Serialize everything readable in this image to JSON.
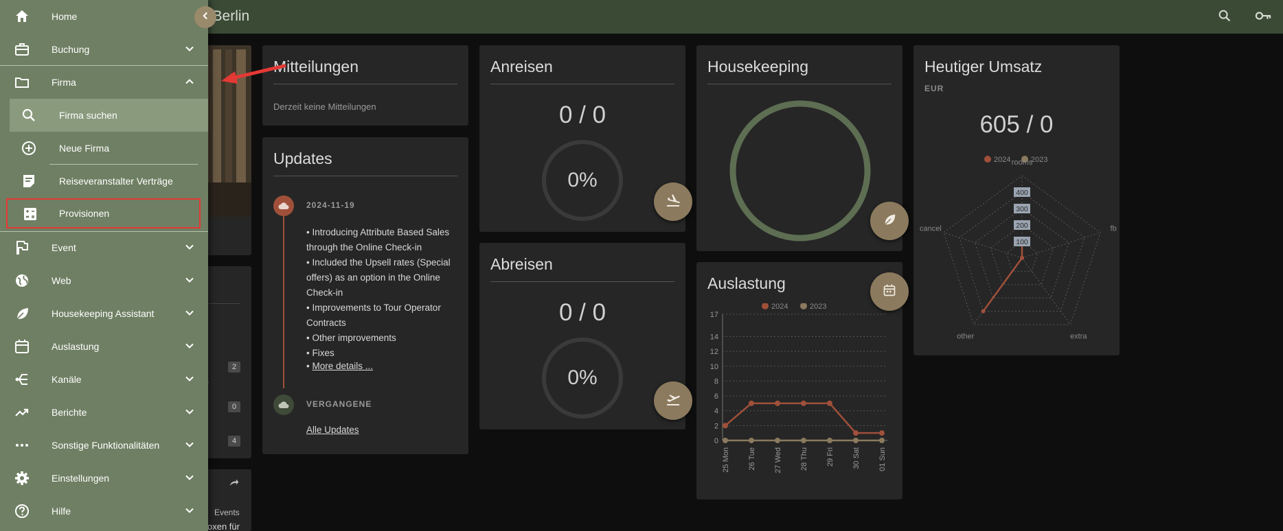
{
  "topbar": {
    "title": "d Berlin"
  },
  "sidebar": {
    "items": [
      {
        "label": "Home"
      },
      {
        "label": "Buchung"
      },
      {
        "label": "Firma"
      },
      {
        "label": "Firma suchen"
      },
      {
        "label": "Neue Firma"
      },
      {
        "label": "Reiseveranstalter Verträge"
      },
      {
        "label": "Provisionen"
      },
      {
        "label": "Event"
      },
      {
        "label": "Web"
      },
      {
        "label": "Housekeeping Assistant"
      },
      {
        "label": "Auslastung"
      },
      {
        "label": "Kanäle"
      },
      {
        "label": "Berichte"
      },
      {
        "label": "Sonstige Funktionalitäten"
      },
      {
        "label": "Einstellungen"
      },
      {
        "label": "Hilfe"
      }
    ]
  },
  "left_partial": {
    "badges": [
      "2",
      "0",
      "4"
    ],
    "events_label": "Events",
    "snippet": "oxen für",
    "ellipsis": "..."
  },
  "mitteilungen": {
    "title": "Mitteilungen",
    "empty_text": "Derzeit keine Mitteilungen"
  },
  "updates": {
    "title": "Updates",
    "date": "2024-11-19",
    "lines": [
      "• Introducing Attribute Based Sales",
      "through the Online Check-in",
      "• Included the Upsell rates (Special",
      "offers) as an option in the Online",
      "Check-in",
      "• Improvements to Tour Operator",
      "Contracts",
      "• Other improvements",
      "• Fixes"
    ],
    "more_prefix": "• ",
    "more_link": "More details ...",
    "past_label": "VERGANGENE",
    "all_link": "Alle Updates"
  },
  "anreisen": {
    "title": "Anreisen",
    "ratio": "0 / 0",
    "percent": "0%"
  },
  "abreisen": {
    "title": "Abreisen",
    "ratio": "0 / 0",
    "percent": "0%"
  },
  "housekeeping": {
    "title": "Housekeeping"
  },
  "umsatz": {
    "title": "Heutiger Umsatz",
    "currency": "EUR",
    "value": "605 / 0",
    "legend": [
      "2024",
      "2023"
    ],
    "axes": [
      "rooms",
      "fb",
      "extra",
      "other",
      "cancel"
    ],
    "ticks": [
      "400",
      "300",
      "200",
      "100"
    ]
  },
  "auslastung": {
    "title": "Auslastung"
  },
  "chart_data": [
    {
      "type": "line",
      "title": "",
      "legend": [
        "2024",
        "2023"
      ],
      "categories": [
        "25 Mon",
        "26 Tue",
        "27 Wed",
        "28 Thu",
        "29 Fri",
        "30 Sat",
        "01 Sun"
      ],
      "series": [
        {
          "name": "2024",
          "values": [
            2,
            5,
            5,
            5,
            5,
            1,
            1
          ],
          "color": "#a0503a"
        },
        {
          "name": "2023",
          "values": [
            0,
            0,
            0,
            0,
            0,
            0,
            0
          ],
          "color": "#8b7a5e"
        }
      ],
      "yticks": [
        0,
        2,
        4,
        6,
        8,
        10,
        12,
        14,
        17
      ],
      "ylim": [
        0,
        17
      ]
    },
    {
      "type": "radar",
      "axes": [
        "rooms",
        "fb",
        "extra",
        "other",
        "cancel"
      ],
      "series": [
        {
          "name": "2024",
          "values": [
            100,
            0,
            0,
            400,
            0
          ],
          "color": "#a0503a"
        }
      ],
      "ticks": [
        100,
        200,
        300,
        400
      ]
    }
  ],
  "colors": {
    "accent": "#6f7f63",
    "fab": "#8b7a5e",
    "series2024": "#a0503a",
    "highlight_box": "#e53935"
  }
}
